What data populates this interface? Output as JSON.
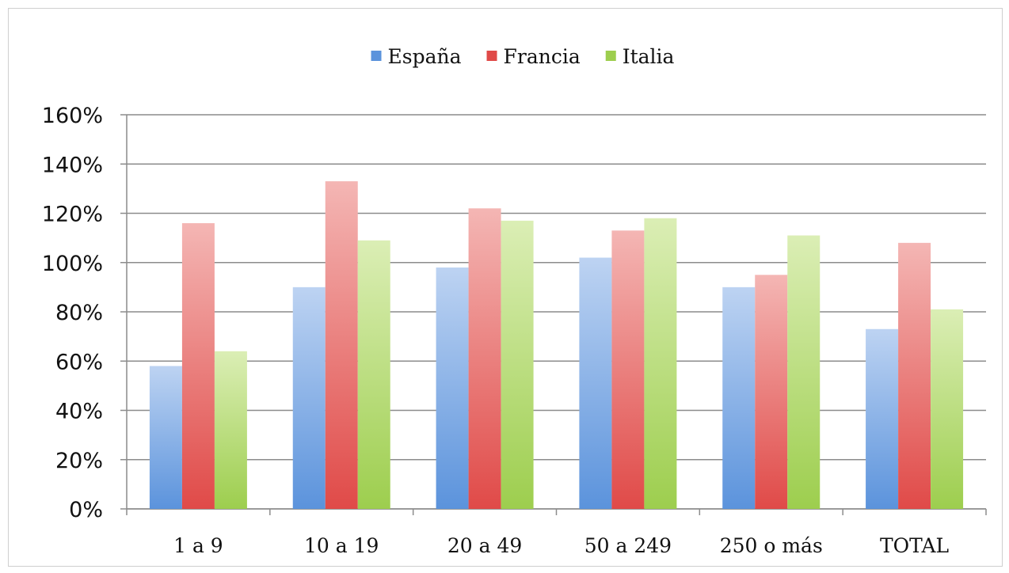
{
  "chart_data": {
    "type": "bar",
    "categories": [
      "1 a 9",
      "10 a 19",
      "20 a 49",
      "50 a 249",
      "250 o más",
      "TOTAL"
    ],
    "series": [
      {
        "name": "España",
        "values": [
          58,
          90,
          98,
          102,
          90,
          73
        ],
        "color": "#5b93dc",
        "color_light": "#bdd3f2"
      },
      {
        "name": "Francia",
        "values": [
          116,
          133,
          122,
          113,
          95,
          108
        ],
        "color": "#e04a48",
        "color_light": "#f4b6b4"
      },
      {
        "name": "Italia",
        "values": [
          64,
          109,
          117,
          118,
          111,
          81
        ],
        "color": "#9dce4e",
        "color_light": "#dbeeb5"
      }
    ],
    "yticks": [
      "0%",
      "20%",
      "40%",
      "60%",
      "80%",
      "100%",
      "120%",
      "140%",
      "160%"
    ],
    "ylim": [
      0,
      160
    ],
    "y_unit": "%",
    "grid": true,
    "legend_position": "top-center",
    "title": "",
    "xlabel": "",
    "ylabel": ""
  }
}
